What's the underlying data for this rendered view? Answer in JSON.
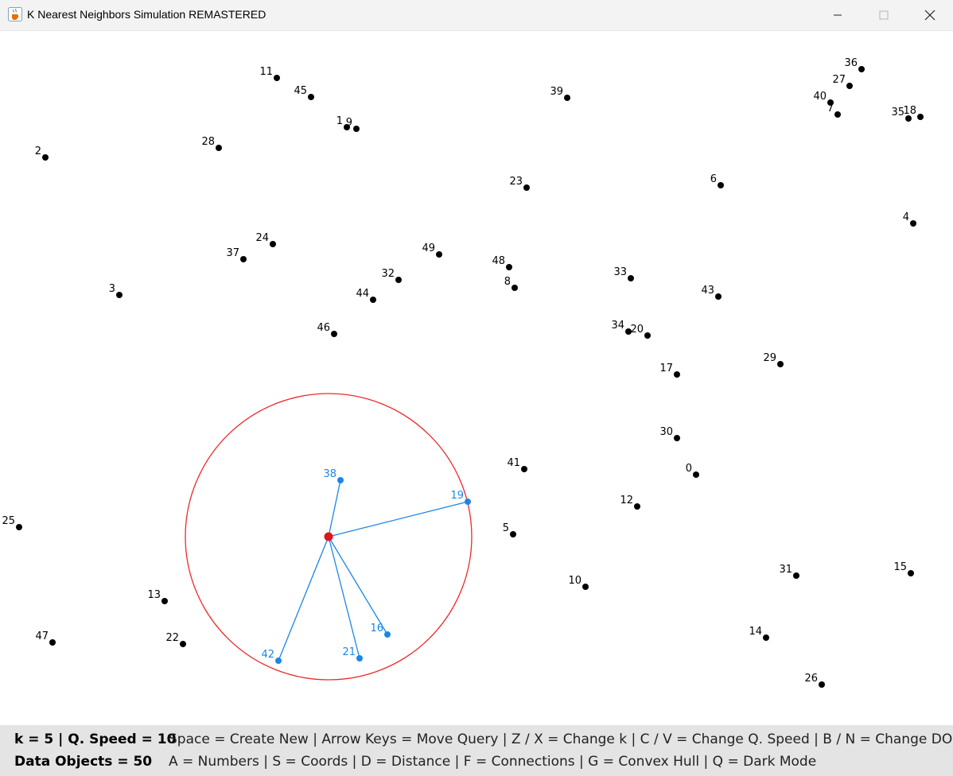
{
  "window": {
    "title": "K Nearest Neighbors Simulation REMASTERED",
    "icon": "java-coffee-cup-icon",
    "controls": [
      "minimize-icon",
      "maximize-icon",
      "close-icon"
    ]
  },
  "status": {
    "line1_left": "k = 5 | Q. Speed = 10",
    "line2_left": "Data Objects = 50",
    "line1_right": "Space = Create New  |  Arrow Keys = Move Query  |  Z / X = Change k  |  C / V = Change Q. Speed  |  B / N = Change DO",
    "line2_right": "A = Numbers  |  S = Coords  |  D = Distance  |  F = Connections  |  G = Convex Hull  |  Q = Dark Mode"
  },
  "colors": {
    "point": "#000000",
    "neighbor": "#1a86e8",
    "query": "#e0141e",
    "circle": "#ee2a2a"
  },
  "simulation": {
    "k": 5,
    "query_speed": 10,
    "data_object_count": 50,
    "neighbor_ids": [
      "38",
      "19",
      "16",
      "21",
      "42"
    ]
  }
}
